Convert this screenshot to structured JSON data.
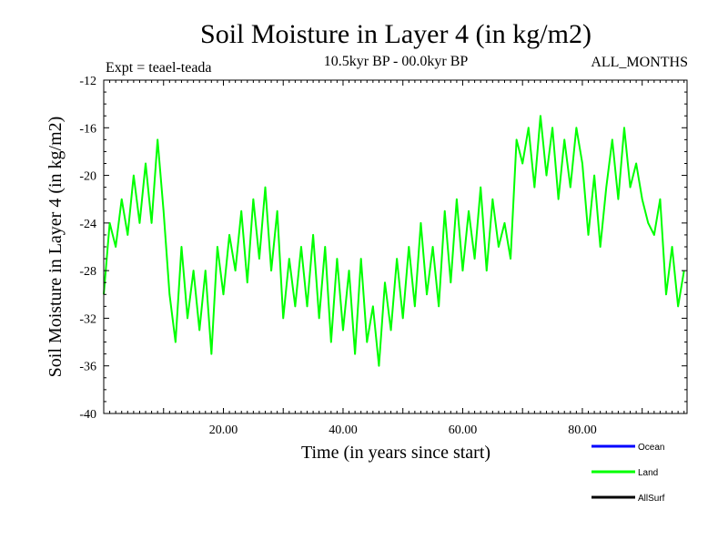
{
  "chart_data": {
    "type": "line",
    "title": "Soil Moisture in Layer 4 (in kg/m2)",
    "subtitle_left": "Expt = teael-teada",
    "subtitle_center": "10.5kyr BP - 00.0kyr BP",
    "subtitle_right": "ALL_MONTHS",
    "xlabel": "Time (in years since start)",
    "ylabel": "Soil Moisture in Layer 4 (in kg/m2)",
    "xlim": [
      0,
      97.5
    ],
    "ylim": [
      -40,
      -12
    ],
    "xticks": [
      20,
      40,
      60,
      80
    ],
    "xtick_labels": [
      "20.00",
      "40.00",
      "60.00",
      "80.00"
    ],
    "yticks": [
      -40,
      -36,
      -32,
      -28,
      -24,
      -20,
      -16,
      -12
    ],
    "ytick_labels": [
      "-40",
      "-36",
      "-32",
      "-28",
      "-24",
      "-20",
      "-16",
      "-12"
    ],
    "grid": false,
    "legend_position": "bottom-right",
    "series": [
      {
        "name": "Ocean",
        "color": "#0000ff",
        "values": []
      },
      {
        "name": "Land",
        "color": "#00ff00",
        "x": [
          0.0,
          1.0,
          2.0,
          3.0,
          4.0,
          5.0,
          6.0,
          7.0,
          8.0,
          9.0,
          10.0,
          11.0,
          12.0,
          13.0,
          14.0,
          15.0,
          16.0,
          17.0,
          18.0,
          19.0,
          20.0,
          21.0,
          22.0,
          23.0,
          24.0,
          25.0,
          26.0,
          27.0,
          28.0,
          29.0,
          30.0,
          31.0,
          32.0,
          33.0,
          34.0,
          35.0,
          36.0,
          37.0,
          38.0,
          39.0,
          40.0,
          41.0,
          42.0,
          43.0,
          44.0,
          45.0,
          46.0,
          47.0,
          48.0,
          49.0,
          50.0,
          51.0,
          52.0,
          53.0,
          54.0,
          55.0,
          56.0,
          57.0,
          58.0,
          59.0,
          60.0,
          61.0,
          62.0,
          63.0,
          64.0,
          65.0,
          66.0,
          67.0,
          68.0,
          69.0,
          70.0,
          71.0,
          72.0,
          73.0,
          74.0,
          75.0,
          76.0,
          77.0,
          78.0,
          79.0,
          80.0,
          81.0,
          82.0,
          83.0,
          84.0,
          85.0,
          86.0,
          87.0,
          88.0,
          89.0,
          90.0,
          91.0,
          92.0,
          93.0,
          94.0,
          95.0,
          96.0,
          97.0
        ],
        "values": [
          -30,
          -24,
          -26,
          -22,
          -25,
          -20,
          -24,
          -19,
          -24,
          -17,
          -23,
          -30,
          -34,
          -26,
          -32,
          -28,
          -33,
          -28,
          -35,
          -26,
          -30,
          -25,
          -28,
          -23,
          -29,
          -22,
          -27,
          -21,
          -28,
          -23,
          -32,
          -27,
          -31,
          -26,
          -31,
          -25,
          -32,
          -26,
          -34,
          -27,
          -33,
          -28,
          -35,
          -27,
          -34,
          -31,
          -36,
          -29,
          -33,
          -27,
          -32,
          -26,
          -31,
          -24,
          -30,
          -26,
          -31,
          -23,
          -29,
          -22,
          -28,
          -23,
          -27,
          -21,
          -28,
          -22,
          -26,
          -24,
          -27,
          -17,
          -19,
          -16,
          -21,
          -15,
          -20,
          -16,
          -22,
          -17,
          -21,
          -16,
          -19,
          -25,
          -20,
          -26,
          -21,
          -17,
          -22,
          -16,
          -21,
          -19,
          -22,
          -24,
          -25,
          -22,
          -30,
          -26,
          -31,
          -28
        ]
      },
      {
        "name": "AllSurf",
        "color": "#000000",
        "values": []
      }
    ]
  }
}
